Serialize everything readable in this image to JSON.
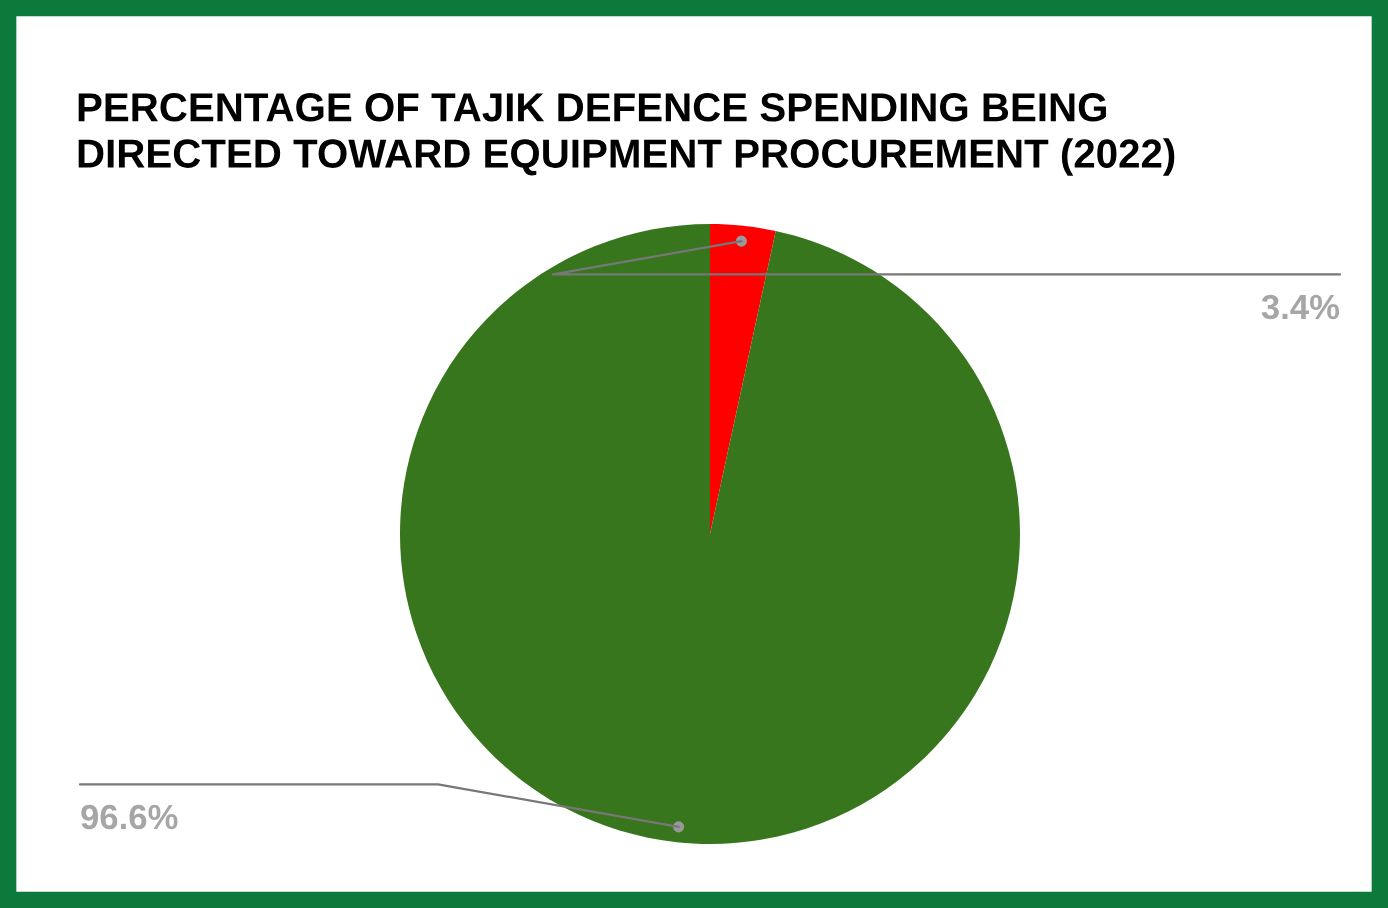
{
  "chart_data": {
    "type": "pie",
    "title": "PERCENTAGE OF TAJIK DEFENCE SPENDING BEING\nDIRECTED TOWARD EQUIPMENT PROCUREMENT (2022)",
    "categories": [
      null,
      null
    ],
    "values": [
      3.4,
      96.6
    ],
    "colors": [
      "#ff0000",
      "#38761d"
    ],
    "value_labels": [
      "3.4%",
      "96.6%"
    ]
  }
}
